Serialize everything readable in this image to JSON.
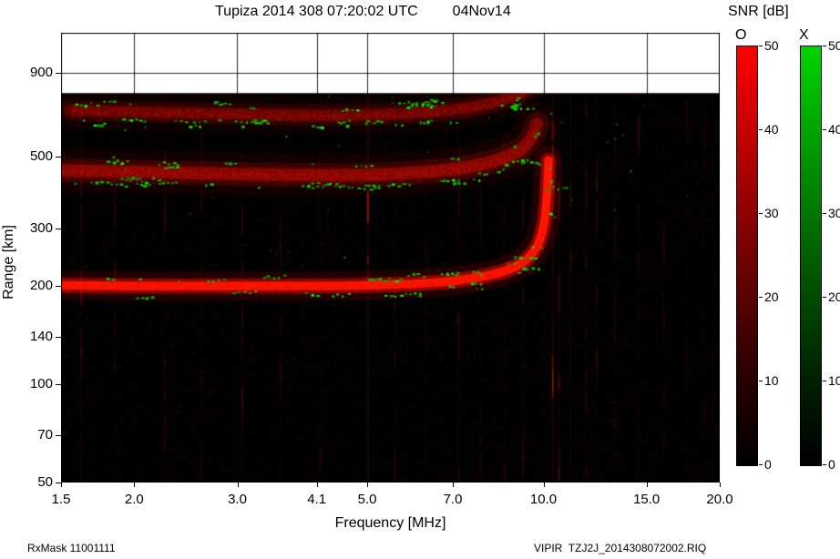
{
  "header": {
    "title": "Tupiza 2014 308 07:20:02 UTC",
    "date": "04Nov14",
    "snr_label": "SNR [dB]"
  },
  "footer": {
    "left": "RxMask 11001111",
    "right": "VIPIR  TZJ2J_2014308072002.RIQ"
  },
  "chart_data": {
    "type": "heatmap",
    "title": "Tupiza 2014 308 07:20:02 UTC 04Nov14",
    "xlabel": "Frequency [MHz]",
    "ylabel": "Range [km]",
    "x_scale": "log",
    "y_scale": "log",
    "xlim": [
      1.5,
      20.0
    ],
    "ylim_km": [
      50,
      1194
    ],
    "x_tick_values": [
      1.5,
      2.0,
      3.0,
      4.1,
      5.0,
      7.0,
      10.0,
      15.0,
      20.0
    ],
    "x_tick_labels": [
      "1.5",
      "2.0",
      "3.0",
      "4.1",
      "5.0",
      "7.0",
      "10.0",
      "15.0",
      "20.0"
    ],
    "y_tick_values": [
      50,
      70,
      100,
      140,
      200,
      300,
      500,
      900
    ],
    "y_tick_labels": [
      "50",
      "70",
      "100",
      "140",
      "200",
      "300",
      "500",
      "900"
    ],
    "grid": true,
    "data_max_range_km": 780,
    "background_color": "#000000",
    "no_data_color": "#ffffff",
    "critical_frequency_mhz": 10.2,
    "colorbars": [
      {
        "name": "O",
        "label": "O",
        "color_hex": "#ff0000",
        "min": 0,
        "max": 50,
        "ticks": [
          50,
          40,
          30,
          20,
          10,
          0
        ]
      },
      {
        "name": "X",
        "label": "X",
        "color_hex": "#00d400",
        "min": 0,
        "max": 50,
        "ticks": [
          50,
          40,
          30,
          20,
          10,
          0
        ]
      }
    ],
    "traces": [
      {
        "name": "F-region O-mode echo 1st hop",
        "color": "#ff1600",
        "thickness_km": 12,
        "points": [
          [
            1.5,
            201
          ],
          [
            2.0,
            200
          ],
          [
            2.5,
            200
          ],
          [
            3.0,
            200
          ],
          [
            3.5,
            200
          ],
          [
            4.0,
            200
          ],
          [
            4.5,
            200
          ],
          [
            5.0,
            201
          ],
          [
            5.5,
            202
          ],
          [
            6.0,
            203
          ],
          [
            6.5,
            205
          ],
          [
            7.0,
            207
          ],
          [
            7.5,
            211
          ],
          [
            8.0,
            215
          ],
          [
            8.5,
            221
          ],
          [
            9.0,
            230
          ],
          [
            9.3,
            239
          ],
          [
            9.6,
            253
          ],
          [
            9.8,
            269
          ],
          [
            9.95,
            291
          ],
          [
            10.05,
            320
          ],
          [
            10.12,
            362
          ],
          [
            10.17,
            425
          ],
          [
            10.2,
            485
          ]
        ]
      },
      {
        "name": "2nd hop echo",
        "color": "#d01000",
        "thickness_km": 40,
        "points": [
          [
            1.5,
            452
          ],
          [
            2.0,
            448
          ],
          [
            2.5,
            444
          ],
          [
            3.0,
            441
          ],
          [
            3.5,
            439
          ],
          [
            4.0,
            438
          ],
          [
            4.5,
            438
          ],
          [
            5.0,
            439
          ],
          [
            5.5,
            441
          ],
          [
            6.0,
            445
          ],
          [
            6.5,
            450
          ],
          [
            7.0,
            456
          ],
          [
            7.5,
            465
          ],
          [
            8.0,
            476
          ],
          [
            8.5,
            492
          ],
          [
            9.0,
            515
          ],
          [
            9.3,
            537
          ],
          [
            9.5,
            563
          ],
          [
            9.65,
            595
          ],
          [
            9.75,
            628
          ]
        ]
      },
      {
        "name": "3rd hop echo",
        "color": "#c01000",
        "thickness_km": 55,
        "points": [
          [
            1.55,
            690
          ],
          [
            2.0,
            684
          ],
          [
            2.5,
            678
          ],
          [
            3.0,
            673
          ],
          [
            3.5,
            670
          ],
          [
            4.0,
            668
          ],
          [
            4.5,
            668
          ],
          [
            5.0,
            670
          ],
          [
            5.5,
            673
          ],
          [
            6.0,
            678
          ],
          [
            6.5,
            685
          ],
          [
            7.0,
            694
          ],
          [
            7.5,
            706
          ],
          [
            8.0,
            722
          ],
          [
            8.5,
            744
          ],
          [
            9.0,
            772
          ],
          [
            9.3,
            796
          ],
          [
            9.5,
            820
          ]
        ]
      }
    ],
    "rfi_streaks": [
      {
        "f": 1.62,
        "strength": 0.07
      },
      {
        "f": 1.85,
        "strength": 0.05
      },
      {
        "f": 2.25,
        "strength": 0.06
      },
      {
        "f": 2.6,
        "strength": 0.05
      },
      {
        "f": 3.05,
        "strength": 0.07
      },
      {
        "f": 3.55,
        "strength": 0.05
      },
      {
        "f": 4.15,
        "strength": 0.06
      },
      {
        "f": 5.0,
        "strength": 0.2
      },
      {
        "f": 5.55,
        "strength": 0.06
      },
      {
        "f": 6.3,
        "strength": 0.05
      },
      {
        "f": 7.15,
        "strength": 0.07
      },
      {
        "f": 7.8,
        "strength": 0.05
      },
      {
        "f": 8.55,
        "strength": 0.06
      },
      {
        "f": 9.2,
        "strength": 0.07
      },
      {
        "f": 10.35,
        "strength": 0.16
      },
      {
        "f": 10.6,
        "strength": 0.1
      },
      {
        "f": 11.1,
        "strength": 0.09
      },
      {
        "f": 11.8,
        "strength": 0.08
      },
      {
        "f": 12.3,
        "strength": 0.06
      },
      {
        "f": 13.2,
        "strength": 0.05
      },
      {
        "f": 14.5,
        "strength": 0.05
      },
      {
        "f": 16.0,
        "strength": 0.05
      },
      {
        "f": 17.5,
        "strength": 0.04
      },
      {
        "f": 18.8,
        "strength": 0.05
      }
    ]
  }
}
